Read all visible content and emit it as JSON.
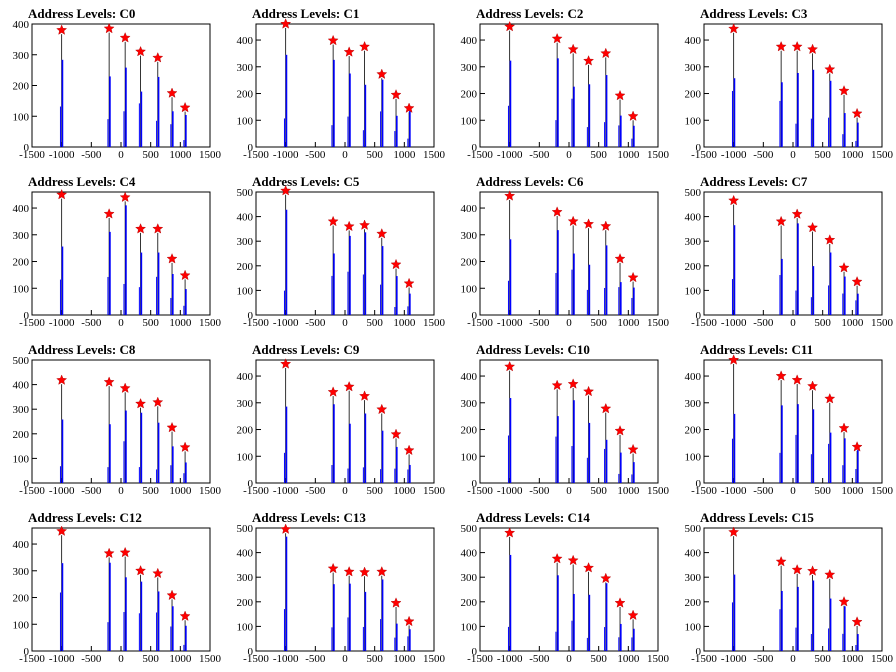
{
  "colors": {
    "histogram": "#0000ff",
    "marker": "#ff0000",
    "axis": "#000000"
  },
  "chart_data": [
    {
      "type": "bar",
      "title": "Address Levels: C0",
      "xlim": [
        -1500,
        1500
      ],
      "ylim": [
        0,
        400
      ],
      "xticks": [
        "-1500",
        "-1000",
        "-500",
        "0",
        "500",
        "1000",
        "1500"
      ],
      "yticks": [
        "0",
        "100",
        "200",
        "300",
        "400"
      ],
      "series": [
        {
          "values": [
            {
              "x": -1000,
              "y": 380
            },
            {
              "x": -200,
              "y": 385
            },
            {
              "x": 70,
              "y": 355
            },
            {
              "x": 330,
              "y": 310
            },
            {
              "x": 620,
              "y": 290
            },
            {
              "x": 860,
              "y": 175
            },
            {
              "x": 1080,
              "y": 128
            }
          ]
        }
      ]
    },
    {
      "type": "bar",
      "title": "Address Levels: C1",
      "xlim": [
        -1500,
        1500
      ],
      "ylim": [
        0,
        460
      ],
      "xticks": [
        "-1500",
        "-1000",
        "-500",
        "0",
        "500",
        "1000",
        "1500"
      ],
      "yticks": [
        "0",
        "100",
        "200",
        "300",
        "400"
      ],
      "series": [
        {
          "values": [
            {
              "x": -1000,
              "y": 460
            },
            {
              "x": -200,
              "y": 398
            },
            {
              "x": 70,
              "y": 355
            },
            {
              "x": 330,
              "y": 375
            },
            {
              "x": 620,
              "y": 272
            },
            {
              "x": 860,
              "y": 195
            },
            {
              "x": 1080,
              "y": 145
            }
          ]
        }
      ]
    },
    {
      "type": "bar",
      "title": "Address Levels: C2",
      "xlim": [
        -1500,
        1500
      ],
      "ylim": [
        0,
        460
      ],
      "xticks": [
        "-1500",
        "-1000",
        "-500",
        "0",
        "500",
        "1000",
        "1500"
      ],
      "yticks": [
        "0",
        "100",
        "200",
        "300",
        "400"
      ],
      "series": [
        {
          "values": [
            {
              "x": -1000,
              "y": 450
            },
            {
              "x": -200,
              "y": 405
            },
            {
              "x": 70,
              "y": 365
            },
            {
              "x": 330,
              "y": 322
            },
            {
              "x": 620,
              "y": 350
            },
            {
              "x": 860,
              "y": 192
            },
            {
              "x": 1080,
              "y": 115
            }
          ]
        }
      ]
    },
    {
      "type": "bar",
      "title": "Address Levels: C3",
      "xlim": [
        -1500,
        1500
      ],
      "ylim": [
        0,
        460
      ],
      "xticks": [
        "-1500",
        "-1000",
        "-500",
        "0",
        "500",
        "1000",
        "1500"
      ],
      "yticks": [
        "0",
        "100",
        "200",
        "300",
        "400"
      ],
      "series": [
        {
          "values": [
            {
              "x": -1000,
              "y": 442
            },
            {
              "x": -200,
              "y": 375
            },
            {
              "x": 70,
              "y": 375
            },
            {
              "x": 330,
              "y": 365
            },
            {
              "x": 620,
              "y": 290
            },
            {
              "x": 860,
              "y": 210
            },
            {
              "x": 1080,
              "y": 125
            }
          ]
        }
      ]
    },
    {
      "type": "bar",
      "title": "Address Levels: C4",
      "xlim": [
        -1500,
        1500
      ],
      "ylim": [
        0,
        460
      ],
      "xticks": [
        "-1500",
        "-1000",
        "-500",
        "0",
        "500",
        "1000",
        "1500"
      ],
      "yticks": [
        "0",
        "100",
        "200",
        "300",
        "400"
      ],
      "series": [
        {
          "values": [
            {
              "x": -1000,
              "y": 450
            },
            {
              "x": -200,
              "y": 378
            },
            {
              "x": 70,
              "y": 440
            },
            {
              "x": 330,
              "y": 322
            },
            {
              "x": 620,
              "y": 322
            },
            {
              "x": 860,
              "y": 210
            },
            {
              "x": 1080,
              "y": 148
            }
          ]
        }
      ]
    },
    {
      "type": "bar",
      "title": "Address Levels: C5",
      "xlim": [
        -1500,
        1500
      ],
      "ylim": [
        0,
        500
      ],
      "xticks": [
        "-1500",
        "-1000",
        "-500",
        "0",
        "500",
        "1000",
        "1500"
      ],
      "yticks": [
        "0",
        "100",
        "200",
        "300",
        "400",
        "500"
      ],
      "series": [
        {
          "values": [
            {
              "x": -1000,
              "y": 505
            },
            {
              "x": -200,
              "y": 380
            },
            {
              "x": 70,
              "y": 360
            },
            {
              "x": 330,
              "y": 365
            },
            {
              "x": 620,
              "y": 330
            },
            {
              "x": 860,
              "y": 205
            },
            {
              "x": 1080,
              "y": 128
            }
          ]
        }
      ]
    },
    {
      "type": "bar",
      "title": "Address Levels: C6",
      "xlim": [
        -1500,
        1500
      ],
      "ylim": [
        0,
        460
      ],
      "xticks": [
        "-1500",
        "-1000",
        "-500",
        "0",
        "500",
        "1000",
        "1500"
      ],
      "yticks": [
        "0",
        "100",
        "200",
        "300",
        "400"
      ],
      "series": [
        {
          "values": [
            {
              "x": -1000,
              "y": 445
            },
            {
              "x": -200,
              "y": 385
            },
            {
              "x": 70,
              "y": 350
            },
            {
              "x": 330,
              "y": 340
            },
            {
              "x": 620,
              "y": 332
            },
            {
              "x": 860,
              "y": 210
            },
            {
              "x": 1080,
              "y": 140
            }
          ]
        }
      ]
    },
    {
      "type": "bar",
      "title": "Address Levels: C7",
      "xlim": [
        -1500,
        1500
      ],
      "ylim": [
        0,
        500
      ],
      "xticks": [
        "-1500",
        "-1000",
        "-500",
        "0",
        "500",
        "1000",
        "1500"
      ],
      "yticks": [
        "0",
        "100",
        "200",
        "300",
        "400",
        "500"
      ],
      "series": [
        {
          "values": [
            {
              "x": -1000,
              "y": 465
            },
            {
              "x": -200,
              "y": 380
            },
            {
              "x": 70,
              "y": 410
            },
            {
              "x": 330,
              "y": 355
            },
            {
              "x": 620,
              "y": 305
            },
            {
              "x": 860,
              "y": 192
            },
            {
              "x": 1080,
              "y": 135
            }
          ]
        }
      ]
    },
    {
      "type": "bar",
      "title": "Address Levels: C8",
      "xlim": [
        -1500,
        1500
      ],
      "ylim": [
        0,
        500
      ],
      "xticks": [
        "-1500",
        "-1000",
        "-500",
        "0",
        "500",
        "1000",
        "1500"
      ],
      "yticks": [
        "0",
        "100",
        "200",
        "300",
        "400",
        "500"
      ],
      "series": [
        {
          "values": [
            {
              "x": -1000,
              "y": 418
            },
            {
              "x": -200,
              "y": 410
            },
            {
              "x": 70,
              "y": 385
            },
            {
              "x": 330,
              "y": 322
            },
            {
              "x": 620,
              "y": 328
            },
            {
              "x": 860,
              "y": 225
            },
            {
              "x": 1080,
              "y": 145
            }
          ]
        }
      ]
    },
    {
      "type": "bar",
      "title": "Address Levels: C9",
      "xlim": [
        -1500,
        1500
      ],
      "ylim": [
        0,
        460
      ],
      "xticks": [
        "-1500",
        "-1000",
        "-500",
        "0",
        "500",
        "1000",
        "1500"
      ],
      "yticks": [
        "0",
        "100",
        "200",
        "300",
        "400"
      ],
      "series": [
        {
          "values": [
            {
              "x": -1000,
              "y": 445
            },
            {
              "x": -200,
              "y": 340
            },
            {
              "x": 70,
              "y": 360
            },
            {
              "x": 330,
              "y": 325
            },
            {
              "x": 620,
              "y": 275
            },
            {
              "x": 860,
              "y": 182
            },
            {
              "x": 1080,
              "y": 122
            }
          ]
        }
      ]
    },
    {
      "type": "bar",
      "title": "Address Levels: C10",
      "xlim": [
        -1500,
        1500
      ],
      "ylim": [
        0,
        460
      ],
      "xticks": [
        "-1500",
        "-1000",
        "-500",
        "0",
        "500",
        "1000",
        "1500"
      ],
      "yticks": [
        "0",
        "100",
        "200",
        "300",
        "400"
      ],
      "series": [
        {
          "values": [
            {
              "x": -1000,
              "y": 435
            },
            {
              "x": -200,
              "y": 365
            },
            {
              "x": 70,
              "y": 370
            },
            {
              "x": 330,
              "y": 342
            },
            {
              "x": 620,
              "y": 278
            },
            {
              "x": 860,
              "y": 195
            },
            {
              "x": 1080,
              "y": 125
            }
          ]
        }
      ]
    },
    {
      "type": "bar",
      "title": "Address Levels: C11",
      "xlim": [
        -1500,
        1500
      ],
      "ylim": [
        0,
        460
      ],
      "xticks": [
        "-1500",
        "-1000",
        "-500",
        "0",
        "500",
        "1000",
        "1500"
      ],
      "yticks": [
        "0",
        "100",
        "200",
        "300",
        "400"
      ],
      "series": [
        {
          "values": [
            {
              "x": -1000,
              "y": 460
            },
            {
              "x": -200,
              "y": 400
            },
            {
              "x": 70,
              "y": 385
            },
            {
              "x": 330,
              "y": 362
            },
            {
              "x": 620,
              "y": 315
            },
            {
              "x": 860,
              "y": 205
            },
            {
              "x": 1080,
              "y": 135
            }
          ]
        }
      ]
    },
    {
      "type": "bar",
      "title": "Address Levels: C12",
      "xlim": [
        -1500,
        1500
      ],
      "ylim": [
        0,
        460
      ],
      "xticks": [
        "-1500",
        "-1000",
        "-500",
        "0",
        "500",
        "1000",
        "1500"
      ],
      "yticks": [
        "0",
        "100",
        "200",
        "300",
        "400"
      ],
      "series": [
        {
          "values": [
            {
              "x": -1000,
              "y": 448
            },
            {
              "x": -200,
              "y": 365
            },
            {
              "x": 70,
              "y": 368
            },
            {
              "x": 330,
              "y": 300
            },
            {
              "x": 620,
              "y": 290
            },
            {
              "x": 860,
              "y": 208
            },
            {
              "x": 1080,
              "y": 130
            }
          ]
        }
      ]
    },
    {
      "type": "bar",
      "title": "Address Levels: C13",
      "xlim": [
        -1500,
        1500
      ],
      "ylim": [
        0,
        500
      ],
      "xticks": [
        "-1500",
        "-1000",
        "-500",
        "0",
        "500",
        "1000",
        "1500"
      ],
      "yticks": [
        "0",
        "100",
        "200",
        "300",
        "400",
        "500"
      ],
      "series": [
        {
          "values": [
            {
              "x": -1000,
              "y": 495
            },
            {
              "x": -200,
              "y": 335
            },
            {
              "x": 70,
              "y": 322
            },
            {
              "x": 330,
              "y": 320
            },
            {
              "x": 620,
              "y": 322
            },
            {
              "x": 860,
              "y": 195
            },
            {
              "x": 1080,
              "y": 120
            }
          ]
        }
      ]
    },
    {
      "type": "bar",
      "title": "Address Levels: C14",
      "xlim": [
        -1500,
        1500
      ],
      "ylim": [
        0,
        500
      ],
      "xticks": [
        "-1500",
        "-1000",
        "-500",
        "0",
        "500",
        "1000",
        "1500"
      ],
      "yticks": [
        "0",
        "100",
        "200",
        "300",
        "400",
        "500"
      ],
      "series": [
        {
          "values": [
            {
              "x": -1000,
              "y": 480
            },
            {
              "x": -200,
              "y": 375
            },
            {
              "x": 70,
              "y": 368
            },
            {
              "x": 330,
              "y": 338
            },
            {
              "x": 620,
              "y": 295
            },
            {
              "x": 860,
              "y": 195
            },
            {
              "x": 1080,
              "y": 145
            }
          ]
        }
      ]
    },
    {
      "type": "bar",
      "title": "Address Levels: C15",
      "xlim": [
        -1500,
        1500
      ],
      "ylim": [
        0,
        500
      ],
      "xticks": [
        "-1500",
        "-1000",
        "-500",
        "0",
        "500",
        "1000",
        "1500"
      ],
      "yticks": [
        "0",
        "100",
        "200",
        "300",
        "400",
        "500"
      ],
      "series": [
        {
          "values": [
            {
              "x": -1000,
              "y": 483
            },
            {
              "x": -200,
              "y": 363
            },
            {
              "x": 70,
              "y": 330
            },
            {
              "x": 330,
              "y": 325
            },
            {
              "x": 620,
              "y": 310
            },
            {
              "x": 860,
              "y": 200
            },
            {
              "x": 1080,
              "y": 118
            }
          ]
        }
      ]
    }
  ]
}
